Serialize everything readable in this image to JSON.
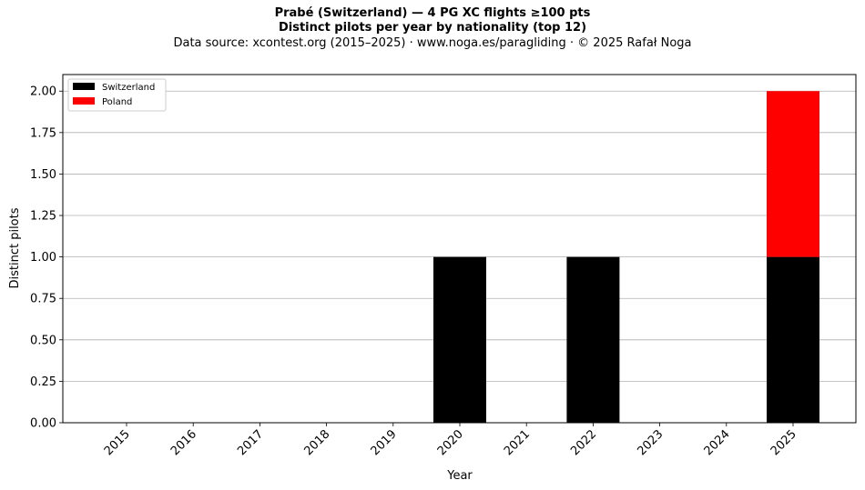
{
  "chart_data": {
    "type": "bar",
    "stacked": true,
    "title": "Prabé (Switzerland)  —  4 PG XC flights ≥100 pts",
    "subtitle": "Distinct pilots per year by nationality (top 12)",
    "source": "Data source: xcontest.org (2015–2025)  ·  www.noga.es/paragliding  ·  © 2025 Rafał Noga",
    "xlabel": "Year",
    "ylabel": "Distinct pilots",
    "categories": [
      "2015",
      "2016",
      "2017",
      "2018",
      "2019",
      "2020",
      "2021",
      "2022",
      "2023",
      "2024",
      "2025"
    ],
    "series": [
      {
        "name": "Switzerland",
        "color": "#000000",
        "values": [
          0,
          0,
          0,
          0,
          0,
          1,
          0,
          1,
          0,
          0,
          1
        ]
      },
      {
        "name": "Poland",
        "color": "#ff0000",
        "values": [
          0,
          0,
          0,
          0,
          0,
          0,
          0,
          0,
          0,
          0,
          1
        ]
      }
    ],
    "ylim": [
      0,
      2.1
    ],
    "yticks": [
      "0.00",
      "0.25",
      "0.50",
      "0.75",
      "1.00",
      "1.25",
      "1.50",
      "1.75",
      "2.00"
    ],
    "grid": "y",
    "legend_position": "top-left"
  }
}
